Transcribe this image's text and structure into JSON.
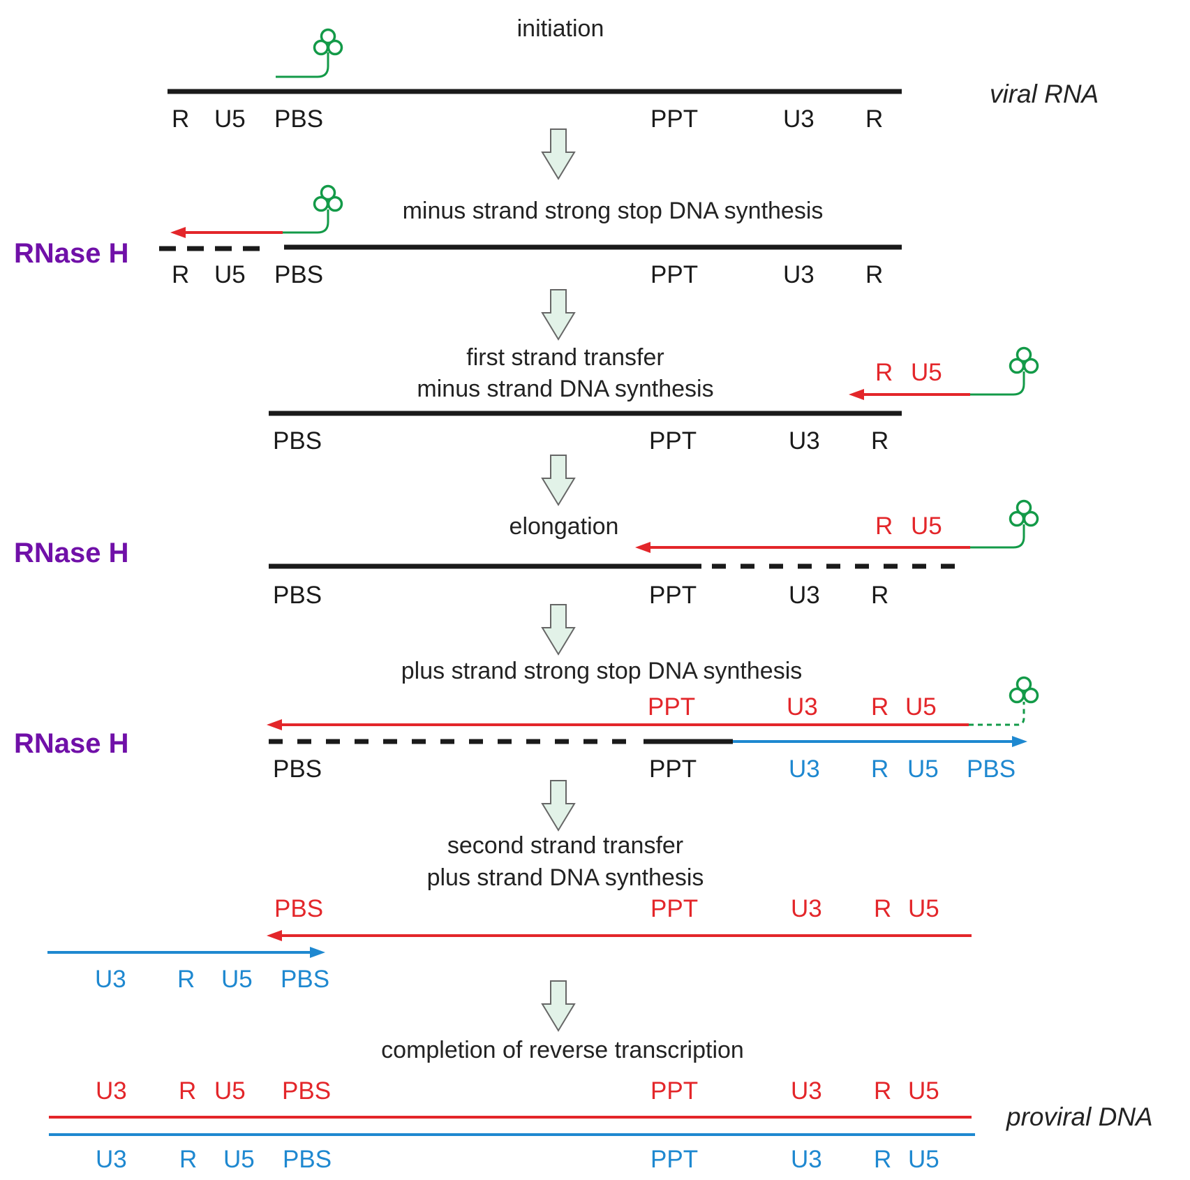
{
  "colors": {
    "black": "#1a1a1a",
    "red": "#e3262a",
    "blue": "#1e88d0",
    "green": "#139a48",
    "purple": "#7010a8",
    "arrow_fill": "#e2f2e8",
    "arrow_stroke": "#666666"
  },
  "side_labels": {
    "viral_rna": "viral RNA",
    "proviral_dna": "proviral DNA"
  },
  "rnase_label": "RNase H",
  "steps": {
    "s1": {
      "caption": "initiation",
      "labels": [
        "R",
        "U5",
        "PBS",
        "PPT",
        "U3",
        "R"
      ]
    },
    "s2": {
      "caption": "minus strand strong stop DNA synthesis",
      "labels": [
        "R",
        "U5",
        "PBS",
        "PPT",
        "U3",
        "R"
      ]
    },
    "s3": {
      "caption_1": "first strand transfer",
      "caption_2": "minus strand  DNA synthesis",
      "red_labels": [
        "R",
        "U5"
      ],
      "labels": [
        "PBS",
        "PPT",
        "U3",
        "R"
      ]
    },
    "s4": {
      "caption": "elongation",
      "red_labels": [
        "R",
        "U5"
      ],
      "labels": [
        "PBS",
        "PPT",
        "U3",
        "R"
      ]
    },
    "s5": {
      "caption": "plus strand strong stop DNA synthesis",
      "red_labels": [
        "PPT",
        "U3",
        "R",
        "U5"
      ],
      "labels": [
        "PBS",
        "PPT"
      ],
      "blue_labels": [
        "U3",
        "R",
        "U5",
        "PBS"
      ]
    },
    "s6": {
      "caption_1": "second strand transfer",
      "caption_2": "plus strand  DNA synthesis",
      "red_labels": [
        "PBS",
        "PPT",
        "U3",
        "R",
        "U5"
      ],
      "blue_labels": [
        "U3",
        "R",
        "U5",
        "PBS"
      ]
    },
    "s7": {
      "caption": "completion of reverse transcription",
      "red_labels": [
        "U3",
        "R",
        "U5",
        "PBS",
        "PPT",
        "U3",
        "R",
        "U5"
      ],
      "blue_labels": [
        "U3",
        "R",
        "U5",
        "PBS",
        "PPT",
        "U3",
        "R",
        "U5"
      ]
    }
  }
}
